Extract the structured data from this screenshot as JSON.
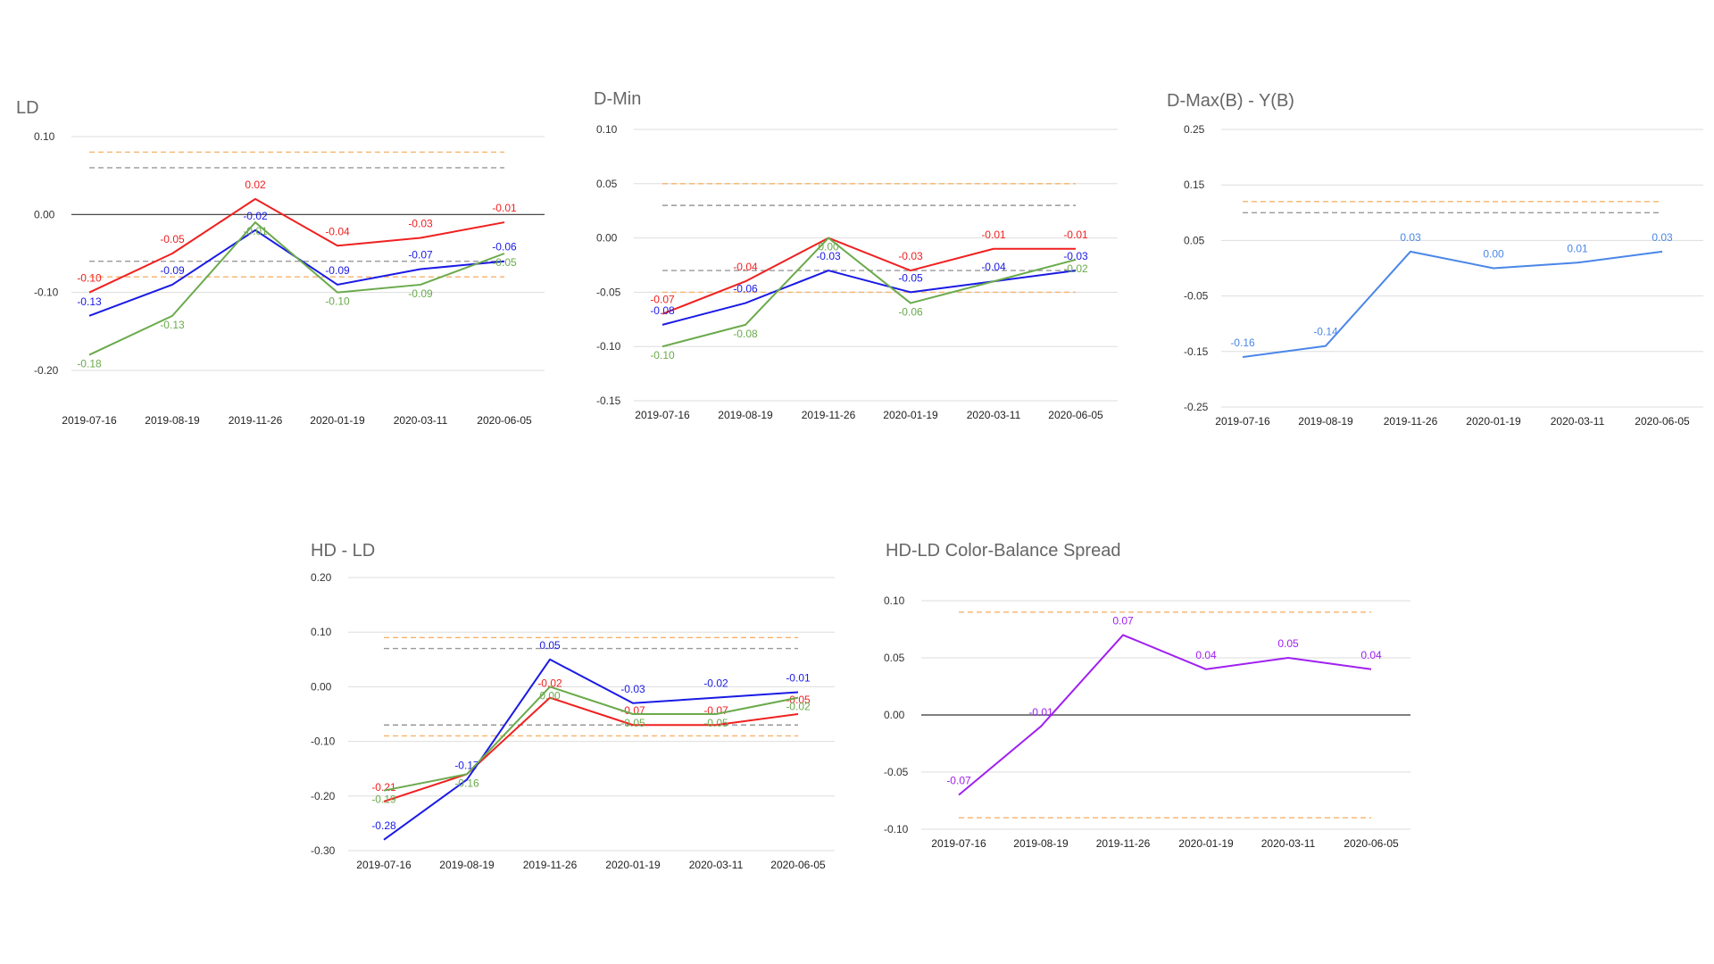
{
  "colors": {
    "red": "#f02020",
    "blue": "#1a1ae6",
    "green": "#6aaa4c",
    "lightblue": "#4a86e8",
    "purple": "#a020f0",
    "orange_ref": "#f6b26b",
    "gray_ref": "#999999"
  },
  "chart_data": [
    {
      "id": "ld",
      "type": "line",
      "title": "LD",
      "categories": [
        "2019-07-16",
        "2019-08-19",
        "2019-11-26",
        "2020-01-19",
        "2020-03-11",
        "2020-06-05"
      ],
      "ylim": [
        -0.2,
        0.1
      ],
      "yticks": [
        "0.10",
        "0.00",
        "-0.10",
        "-0.20"
      ],
      "grid": true,
      "zero_line": true,
      "series": [
        {
          "color": "red",
          "values": [
            -0.1,
            -0.05,
            0.02,
            -0.04,
            -0.03,
            -0.01
          ],
          "labels": [
            "-0.10",
            "-0.05",
            "0.02",
            "-0.04",
            "-0.03",
            "-0.01"
          ]
        },
        {
          "color": "blue",
          "values": [
            -0.13,
            -0.09,
            -0.02,
            -0.09,
            -0.07,
            -0.06
          ],
          "labels": [
            "-0.13",
            "-0.09",
            "-0.02",
            "-0.09",
            "-0.07",
            "-0.06"
          ]
        },
        {
          "color": "green",
          "values": [
            -0.18,
            -0.13,
            -0.01,
            -0.1,
            -0.09,
            -0.05
          ],
          "labels": [
            "-0.18",
            "-0.13",
            "-0.01",
            "-0.10",
            "-0.09",
            "-0.05"
          ]
        }
      ],
      "reference_lines": [
        {
          "color": "orange_ref",
          "value": 0.08
        },
        {
          "color": "gray_ref",
          "value": 0.06
        },
        {
          "color": "gray_ref",
          "value": -0.06
        },
        {
          "color": "orange_ref",
          "value": -0.08
        }
      ]
    },
    {
      "id": "dmin",
      "type": "line",
      "title": "D-Min",
      "categories": [
        "2019-07-16",
        "2019-08-19",
        "2019-11-26",
        "2020-01-19",
        "2020-03-11",
        "2020-06-05"
      ],
      "ylim": [
        -0.15,
        0.1
      ],
      "yticks": [
        "0.10",
        "0.05",
        "0.00",
        "-0.05",
        "-0.10",
        "-0.15"
      ],
      "grid": true,
      "zero_line": false,
      "series": [
        {
          "color": "red",
          "values": [
            -0.07,
            -0.04,
            0.0,
            -0.03,
            -0.01,
            -0.01
          ],
          "labels": [
            "-0.07",
            "-0.04",
            "",
            "-0.03",
            "-0.01",
            "-0.01"
          ]
        },
        {
          "color": "blue",
          "values": [
            -0.08,
            -0.06,
            -0.03,
            -0.05,
            -0.04,
            -0.03
          ],
          "labels": [
            "-0.08",
            "-0.06",
            "-0.03",
            "-0.05",
            "-0.04",
            "-0.03"
          ]
        },
        {
          "color": "green",
          "values": [
            -0.1,
            -0.08,
            0.0,
            -0.06,
            -0.04,
            -0.02
          ],
          "labels": [
            "-0.10",
            "-0.08",
            "0.00",
            "-0.06",
            "",
            "-0.02"
          ]
        }
      ],
      "reference_lines": [
        {
          "color": "orange_ref",
          "value": 0.05
        },
        {
          "color": "gray_ref",
          "value": 0.03
        },
        {
          "color": "gray_ref",
          "value": -0.03
        },
        {
          "color": "orange_ref",
          "value": -0.05
        }
      ]
    },
    {
      "id": "dmax",
      "type": "line",
      "title": "D-Max(B) - Y(B)",
      "categories": [
        "2019-07-16",
        "2019-08-19",
        "2019-11-26",
        "2020-01-19",
        "2020-03-11",
        "2020-06-05"
      ],
      "ylim": [
        -0.25,
        0.25
      ],
      "yticks": [
        "0.25",
        "0.15",
        "0.05",
        "-0.05",
        "-0.15",
        "-0.25"
      ],
      "grid": true,
      "zero_line": false,
      "series": [
        {
          "color": "lightblue",
          "values": [
            -0.16,
            -0.14,
            0.03,
            0.0,
            0.01,
            0.03
          ],
          "labels": [
            "-0.16",
            "-0.14",
            "0.03",
            "0.00",
            "0.01",
            "0.03"
          ]
        }
      ],
      "reference_lines": [
        {
          "color": "orange_ref",
          "value": 0.12
        },
        {
          "color": "gray_ref",
          "value": 0.1
        }
      ]
    },
    {
      "id": "hdld",
      "type": "line",
      "title": "HD - LD",
      "categories": [
        "2019-07-16",
        "2019-08-19",
        "2019-11-26",
        "2020-01-19",
        "2020-03-11",
        "2020-06-05"
      ],
      "ylim": [
        -0.3,
        0.2
      ],
      "yticks": [
        "0.20",
        "0.10",
        "0.00",
        "-0.10",
        "-0.20",
        "-0.30"
      ],
      "grid": true,
      "zero_line": false,
      "series": [
        {
          "color": "red",
          "values": [
            -0.21,
            -0.16,
            -0.02,
            -0.07,
            -0.07,
            -0.05
          ],
          "labels": [
            "-0.21",
            "",
            "-0.02",
            "-0.07",
            "-0.07",
            "-0.05"
          ]
        },
        {
          "color": "blue",
          "values": [
            -0.28,
            -0.17,
            0.05,
            -0.03,
            -0.02,
            -0.01
          ],
          "labels": [
            "-0.28",
            "-0.17",
            "0.05",
            "-0.03",
            "-0.02",
            "-0.01"
          ]
        },
        {
          "color": "green",
          "values": [
            -0.19,
            -0.16,
            0.0,
            -0.05,
            -0.05,
            -0.02
          ],
          "labels": [
            "-0.19",
            "-0.16",
            "0.00",
            "-0.05",
            "-0.05",
            "-0.02"
          ]
        }
      ],
      "reference_lines": [
        {
          "color": "orange_ref",
          "value": 0.09
        },
        {
          "color": "gray_ref",
          "value": 0.07
        },
        {
          "color": "gray_ref",
          "value": -0.07
        },
        {
          "color": "orange_ref",
          "value": -0.09
        }
      ]
    },
    {
      "id": "spread",
      "type": "line",
      "title": "HD-LD Color-Balance Spread",
      "categories": [
        "2019-07-16",
        "2019-08-19",
        "2019-11-26",
        "2020-01-19",
        "2020-03-11",
        "2020-06-05"
      ],
      "ylim": [
        -0.1,
        0.1
      ],
      "yticks": [
        "0.10",
        "0.05",
        "0.00",
        "-0.05",
        "-0.10"
      ],
      "grid": true,
      "zero_line": true,
      "series": [
        {
          "color": "purple",
          "values": [
            -0.07,
            -0.01,
            0.07,
            0.04,
            0.05,
            0.04
          ],
          "labels": [
            "-0.07",
            "-0.01",
            "0.07",
            "0.04",
            "0.05",
            "0.04"
          ]
        }
      ],
      "reference_lines": [
        {
          "color": "orange_ref",
          "value": 0.09
        },
        {
          "color": "orange_ref",
          "value": -0.09
        }
      ]
    }
  ]
}
